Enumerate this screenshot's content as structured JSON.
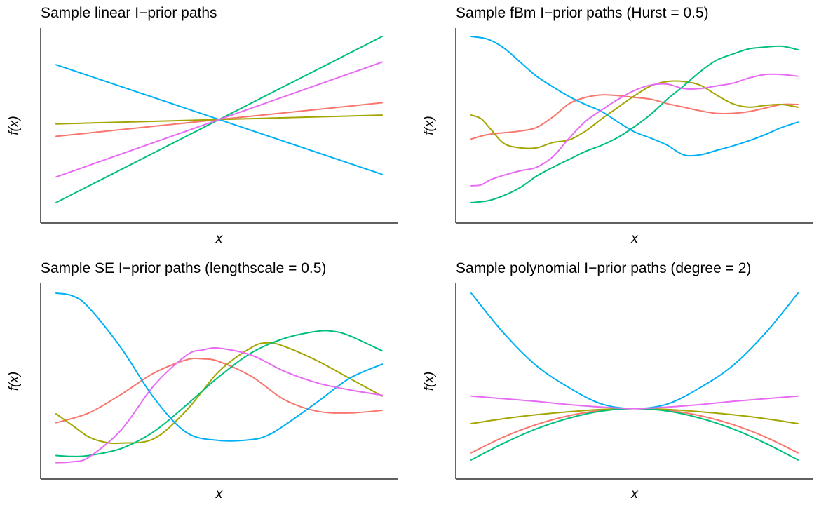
{
  "colors": {
    "series_1": "#F8766D",
    "series_2": "#A3A500",
    "series_3": "#00BF7D",
    "series_4": "#00B0F6",
    "series_5": "#E76BF3"
  },
  "chart_data": [
    {
      "type": "line",
      "title": "Sample linear I−prior paths",
      "xlabel": "x",
      "ylabel": "f(x)",
      "xlim": [
        0,
        1
      ],
      "ylim": [
        0,
        1
      ],
      "grid": false,
      "legend": "none",
      "series": [
        {
          "color": "#F8766D",
          "x": [
            0,
            0.5,
            1
          ],
          "y": [
            0.435,
            0.53,
            0.625
          ]
        },
        {
          "color": "#A3A500",
          "x": [
            0,
            0.5,
            1
          ],
          "y": [
            0.505,
            0.53,
            0.555
          ]
        },
        {
          "color": "#00BF7D",
          "x": [
            0,
            0.5,
            1
          ],
          "y": [
            0.06,
            0.53,
            1.0
          ]
        },
        {
          "color": "#00B0F6",
          "x": [
            0,
            0.5,
            1
          ],
          "y": [
            0.84,
            0.53,
            0.22
          ]
        },
        {
          "color": "#E76BF3",
          "x": [
            0,
            0.5,
            1
          ],
          "y": [
            0.205,
            0.53,
            0.855
          ]
        }
      ]
    },
    {
      "type": "line",
      "title": "Sample fBm I−prior paths (Hurst = 0.5)",
      "xlabel": "x",
      "ylabel": "f(x)",
      "xlim": [
        0,
        1
      ],
      "ylim": [
        0,
        1
      ],
      "grid": false,
      "legend": "none",
      "series": [
        {
          "color": "#F8766D",
          "x": [
            0,
            0.05,
            0.1,
            0.15,
            0.2,
            0.25,
            0.3,
            0.35,
            0.4,
            0.45,
            0.5,
            0.55,
            0.6,
            0.65,
            0.7,
            0.75,
            0.8,
            0.85,
            0.9,
            0.95,
            1.0
          ],
          "y": [
            0.42,
            0.445,
            0.455,
            0.465,
            0.485,
            0.545,
            0.62,
            0.655,
            0.67,
            0.665,
            0.655,
            0.645,
            0.62,
            0.6,
            0.58,
            0.565,
            0.565,
            0.575,
            0.595,
            0.615,
            0.615
          ]
        },
        {
          "color": "#A3A500",
          "x": [
            0,
            0.03,
            0.06,
            0.1,
            0.15,
            0.2,
            0.25,
            0.3,
            0.35,
            0.4,
            0.45,
            0.5,
            0.55,
            0.6,
            0.65,
            0.7,
            0.75,
            0.8,
            0.85,
            0.9,
            0.95,
            1.0
          ],
          "y": [
            0.555,
            0.535,
            0.475,
            0.395,
            0.37,
            0.37,
            0.4,
            0.415,
            0.465,
            0.535,
            0.6,
            0.665,
            0.72,
            0.745,
            0.745,
            0.725,
            0.67,
            0.62,
            0.6,
            0.61,
            0.615,
            0.6
          ]
        },
        {
          "color": "#00BF7D",
          "x": [
            0,
            0.05,
            0.1,
            0.15,
            0.2,
            0.25,
            0.3,
            0.35,
            0.4,
            0.45,
            0.5,
            0.55,
            0.6,
            0.65,
            0.7,
            0.75,
            0.8,
            0.85,
            0.9,
            0.95,
            1.0
          ],
          "y": [
            0.06,
            0.07,
            0.1,
            0.145,
            0.21,
            0.26,
            0.305,
            0.35,
            0.385,
            0.43,
            0.49,
            0.56,
            0.645,
            0.72,
            0.8,
            0.865,
            0.9,
            0.93,
            0.94,
            0.945,
            0.925
          ]
        },
        {
          "color": "#00B0F6",
          "x": [
            0,
            0.05,
            0.1,
            0.15,
            0.2,
            0.25,
            0.3,
            0.35,
            0.4,
            0.45,
            0.5,
            0.55,
            0.6,
            0.65,
            0.7,
            0.75,
            0.8,
            0.85,
            0.9,
            0.95,
            1.0
          ],
          "y": [
            1.0,
            0.985,
            0.935,
            0.855,
            0.775,
            0.715,
            0.66,
            0.615,
            0.575,
            0.515,
            0.46,
            0.425,
            0.385,
            0.33,
            0.33,
            0.355,
            0.38,
            0.41,
            0.445,
            0.485,
            0.515
          ]
        },
        {
          "color": "#E76BF3",
          "x": [
            0,
            0.03,
            0.06,
            0.1,
            0.15,
            0.2,
            0.25,
            0.3,
            0.35,
            0.4,
            0.45,
            0.5,
            0.55,
            0.6,
            0.65,
            0.7,
            0.75,
            0.8,
            0.85,
            0.9,
            0.95,
            1.0
          ],
          "y": [
            0.155,
            0.16,
            0.19,
            0.215,
            0.24,
            0.26,
            0.32,
            0.425,
            0.52,
            0.585,
            0.645,
            0.695,
            0.725,
            0.73,
            0.705,
            0.705,
            0.72,
            0.735,
            0.765,
            0.785,
            0.785,
            0.775
          ]
        }
      ]
    },
    {
      "type": "line",
      "title": "Sample SE I−prior paths (lengthscale = 0.5)",
      "xlabel": "x",
      "ylabel": "f(x)",
      "xlim": [
        0,
        1
      ],
      "ylim": [
        0,
        1
      ],
      "grid": false,
      "legend": "none",
      "series": [
        {
          "color": "#F8766D",
          "x": [
            0,
            0.1,
            0.2,
            0.3,
            0.4,
            0.45,
            0.5,
            0.6,
            0.7,
            0.8,
            0.9,
            1.0
          ],
          "y": [
            0.27,
            0.325,
            0.43,
            0.55,
            0.625,
            0.63,
            0.615,
            0.53,
            0.4,
            0.335,
            0.325,
            0.34
          ]
        },
        {
          "color": "#A3A500",
          "x": [
            0,
            0.05,
            0.1,
            0.15,
            0.2,
            0.3,
            0.4,
            0.5,
            0.6,
            0.65,
            0.7,
            0.8,
            0.9,
            1.0
          ],
          "y": [
            0.32,
            0.255,
            0.19,
            0.16,
            0.155,
            0.18,
            0.34,
            0.56,
            0.695,
            0.72,
            0.7,
            0.62,
            0.52,
            0.42
          ]
        },
        {
          "color": "#00BF7D",
          "x": [
            0,
            0.05,
            0.1,
            0.2,
            0.3,
            0.4,
            0.5,
            0.6,
            0.7,
            0.8,
            0.85,
            0.9,
            1.0
          ],
          "y": [
            0.085,
            0.08,
            0.085,
            0.125,
            0.22,
            0.37,
            0.53,
            0.665,
            0.745,
            0.785,
            0.785,
            0.76,
            0.675
          ]
        },
        {
          "color": "#00B0F6",
          "x": [
            0,
            0.05,
            0.1,
            0.2,
            0.3,
            0.4,
            0.5,
            0.6,
            0.65,
            0.7,
            0.8,
            0.9,
            1.0
          ],
          "y": [
            1.0,
            0.985,
            0.92,
            0.69,
            0.41,
            0.215,
            0.17,
            0.175,
            0.2,
            0.255,
            0.385,
            0.52,
            0.6
          ]
        },
        {
          "color": "#E76BF3",
          "x": [
            0,
            0.05,
            0.1,
            0.2,
            0.3,
            0.4,
            0.45,
            0.5,
            0.6,
            0.7,
            0.8,
            0.9,
            1.0
          ],
          "y": [
            0.045,
            0.05,
            0.075,
            0.23,
            0.48,
            0.65,
            0.68,
            0.69,
            0.65,
            0.56,
            0.495,
            0.455,
            0.425
          ]
        }
      ]
    },
    {
      "type": "line",
      "title": "Sample polynomial I−prior paths (degree = 2)",
      "xlabel": "x",
      "ylabel": "f(x)",
      "xlim": [
        0,
        1
      ],
      "ylim": [
        0,
        1
      ],
      "grid": false,
      "legend": "none",
      "series": [
        {
          "color": "#F8766D",
          "x": [
            0,
            0.1,
            0.2,
            0.3,
            0.4,
            0.5,
            0.6,
            0.7,
            0.8,
            0.9,
            1.0
          ],
          "y": [
            0.1,
            0.19,
            0.26,
            0.31,
            0.34,
            0.35,
            0.34,
            0.31,
            0.26,
            0.19,
            0.1
          ]
        },
        {
          "color": "#A3A500",
          "x": [
            0,
            0.1,
            0.2,
            0.3,
            0.4,
            0.5,
            0.6,
            0.7,
            0.8,
            0.9,
            1.0
          ],
          "y": [
            0.265,
            0.293,
            0.315,
            0.332,
            0.345,
            0.35,
            0.345,
            0.332,
            0.315,
            0.293,
            0.265
          ]
        },
        {
          "color": "#00BF7D",
          "x": [
            0,
            0.1,
            0.2,
            0.3,
            0.4,
            0.5,
            0.6,
            0.7,
            0.8,
            0.9,
            1.0
          ],
          "y": [
            0.06,
            0.155,
            0.236,
            0.296,
            0.336,
            0.35,
            0.336,
            0.296,
            0.236,
            0.155,
            0.06
          ]
        },
        {
          "color": "#00B0F6",
          "x": [
            0,
            0.1,
            0.2,
            0.3,
            0.4,
            0.5,
            0.6,
            0.7,
            0.8,
            0.9,
            1.0
          ],
          "y": [
            1.0,
            0.774,
            0.591,
            0.467,
            0.375,
            0.35,
            0.375,
            0.467,
            0.591,
            0.774,
            1.0
          ]
        },
        {
          "color": "#E76BF3",
          "x": [
            0,
            0.1,
            0.2,
            0.3,
            0.4,
            0.5,
            0.6,
            0.7,
            0.8,
            0.9,
            1.0
          ],
          "y": [
            0.42,
            0.405,
            0.39,
            0.372,
            0.358,
            0.35,
            0.358,
            0.372,
            0.39,
            0.405,
            0.42
          ]
        }
      ]
    }
  ]
}
